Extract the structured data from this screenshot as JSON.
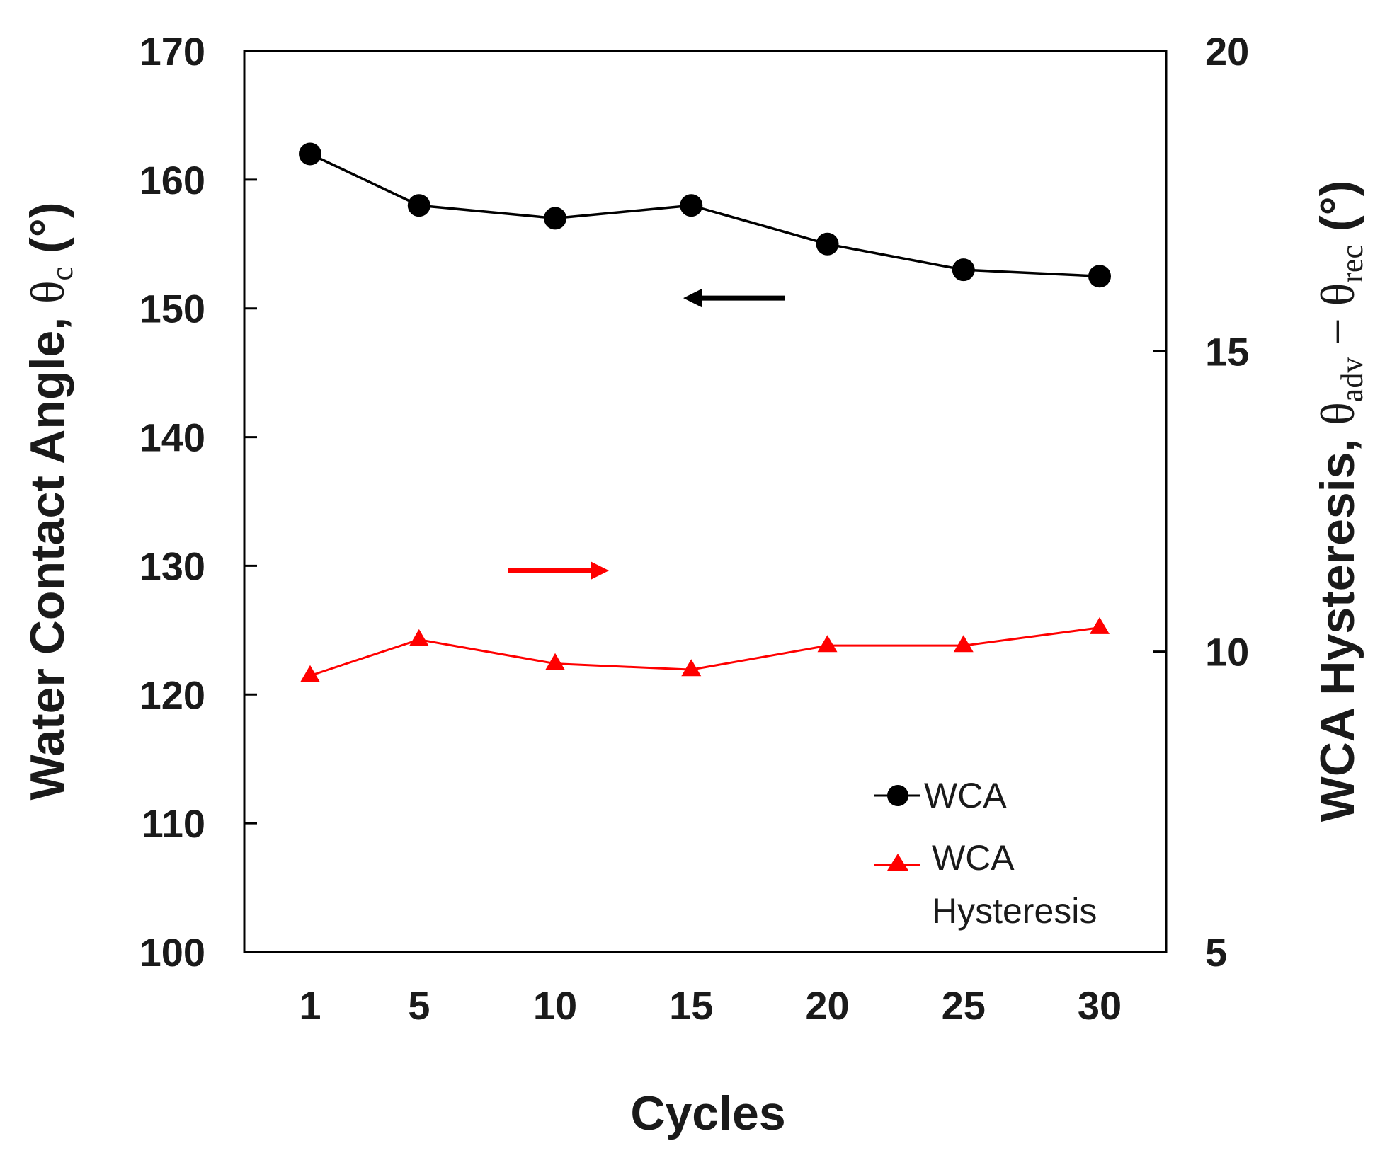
{
  "chart_data": {
    "type": "line",
    "x": [
      1,
      5,
      10,
      15,
      20,
      25,
      30
    ],
    "x_tick_labels": [
      "1",
      "5",
      "10",
      "15",
      "20",
      "25",
      "30"
    ],
    "xlabel": "Cycles",
    "y_left": {
      "label_prefix": "Water Contact Angle, ",
      "label_symbol": "θ",
      "label_subscript": "c",
      "label_suffix": " (°)",
      "range": [
        100,
        170
      ],
      "ticks": [
        100,
        110,
        120,
        130,
        140,
        150,
        160,
        170
      ]
    },
    "y_right": {
      "label_prefix": "WCA Hysteresis, ",
      "label_symbol_1": "θ",
      "label_subscript_1": "adv",
      "label_minus": " − ",
      "label_symbol_2": "θ",
      "label_subscript_2": "rec",
      "label_suffix": " (°)",
      "range": [
        5,
        20
      ],
      "ticks": [
        5,
        10,
        15,
        20
      ]
    },
    "series": [
      {
        "name": "WCA",
        "axis": "left",
        "color": "#000000",
        "marker": "circle",
        "values": [
          162,
          158,
          157,
          158,
          155,
          153,
          152.5
        ]
      },
      {
        "name": "WCA Hysteresis",
        "axis": "right",
        "color": "#ff0000",
        "marker": "triangle",
        "values": [
          9.6,
          10.2,
          9.8,
          9.7,
          10.1,
          10.1,
          10.4
        ]
      }
    ],
    "legend": {
      "position": "bottom-right",
      "entries": [
        {
          "lines": [
            "WCA"
          ],
          "color": "#000000",
          "marker": "circle"
        },
        {
          "lines": [
            "WCA",
            "Hysteresis"
          ],
          "color": "#ff0000",
          "marker": "triangle"
        }
      ]
    },
    "annotations": [
      {
        "type": "arrow",
        "direction": "left",
        "color": "#000000",
        "series": "WCA"
      },
      {
        "type": "arrow",
        "direction": "right",
        "color": "#ff0000",
        "series": "WCA Hysteresis"
      }
    ]
  }
}
